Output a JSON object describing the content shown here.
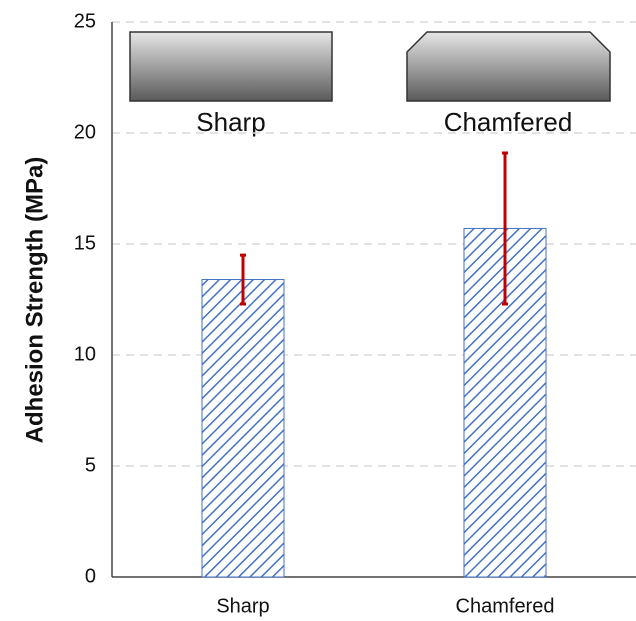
{
  "chart_data": {
    "type": "bar",
    "y_label": "Adhesion Strength (MPa)",
    "categories": [
      "Sharp",
      "Chamfered"
    ],
    "values": [
      13.4,
      15.7
    ],
    "errors": [
      1.1,
      3.4
    ],
    "color": "#4472c4",
    "error_color": "#c00000",
    "annotations": [
      "Sharp",
      "Chamfered"
    ],
    "ylim": [
      0,
      25
    ],
    "yticks": [
      0,
      5,
      10,
      15,
      20,
      25
    ],
    "grid": true
  }
}
